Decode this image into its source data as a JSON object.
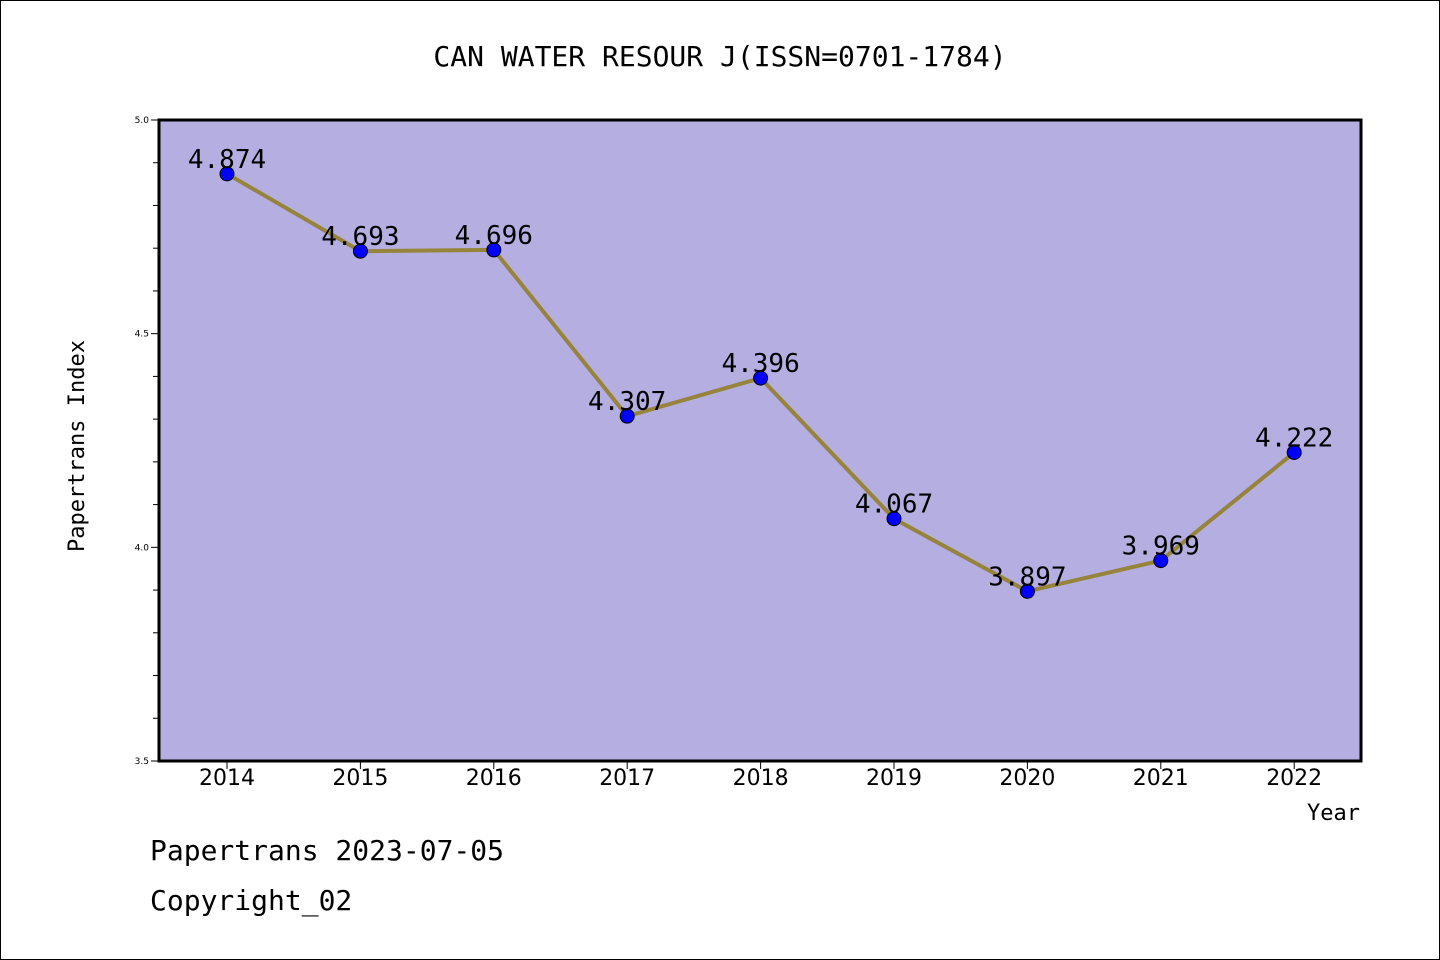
{
  "chart_data": {
    "type": "line",
    "title": "CAN WATER RESOUR J(ISSN=0701-1784)",
    "xlabel": "Year",
    "ylabel": "Papertrans Index",
    "categories": [
      "2014",
      "2015",
      "2016",
      "2017",
      "2018",
      "2019",
      "2020",
      "2021",
      "2022"
    ],
    "series": [
      {
        "values": [
          4.874,
          4.693,
          4.696,
          4.307,
          4.396,
          4.067,
          3.897,
          3.969,
          4.222
        ],
        "labels": [
          "4.874",
          "4.693",
          "4.696",
          "4.307",
          "4.396",
          "4.067",
          "3.897",
          "3.969",
          "4.222"
        ]
      }
    ],
    "ylim": [
      3.5,
      5.0
    ],
    "yticks": [
      "3.5",
      "4.0",
      "4.5",
      "5.0"
    ],
    "grid": false,
    "colors": {
      "plot_background": "#b5aee1",
      "line": "#96843c",
      "marker": "#0000ff"
    }
  },
  "footer": {
    "line1": "Papertrans 2023-07-05",
    "line2": "Copyright_02"
  }
}
